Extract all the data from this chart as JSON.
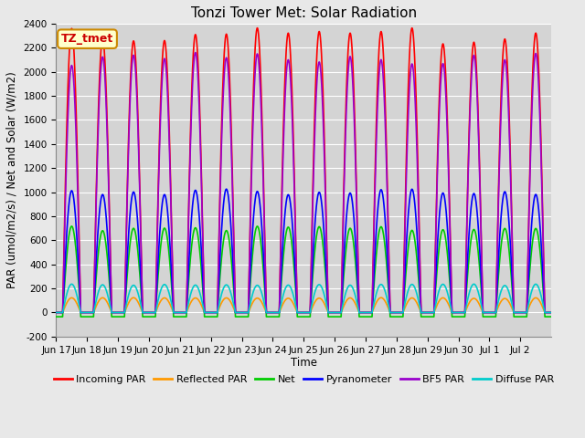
{
  "title": "Tonzi Tower Met: Solar Radiation",
  "ylabel": "PAR (umol/m2/s) / Net and Solar (W/m2)",
  "xlabel": "Time",
  "ylim": [
    -200,
    2400
  ],
  "yticks": [
    -200,
    0,
    200,
    400,
    600,
    800,
    1000,
    1200,
    1400,
    1600,
    1800,
    2000,
    2200,
    2400
  ],
  "fig_bg": "#e8e8e8",
  "plot_bg": "#d4d4d4",
  "grid_color": "#ffffff",
  "label_box_text": "TZ_tmet",
  "label_box_facecolor": "#ffffcc",
  "label_box_edgecolor": "#cc8800",
  "series": [
    {
      "name": "Incoming PAR",
      "color": "#ff0000",
      "peak": 2300,
      "lw": 1.2
    },
    {
      "name": "Reflected PAR",
      "color": "#ff9900",
      "peak": 120,
      "lw": 1.2
    },
    {
      "name": "Net",
      "color": "#00cc00",
      "peak": 700,
      "lw": 1.2
    },
    {
      "name": "Pyranometer",
      "color": "#0000ff",
      "peak": 1000,
      "lw": 1.2
    },
    {
      "name": "BF5 PAR",
      "color": "#9900cc",
      "peak": 2100,
      "lw": 1.2
    },
    {
      "name": "Diffuse PAR",
      "color": "#00cccc",
      "peak": 230,
      "lw": 1.2
    }
  ],
  "n_days": 16,
  "ppd": 480,
  "day_labels": [
    "Jun 17",
    "Jun 18",
    "Jun 19",
    "Jun 20",
    "Jun 21",
    "Jun 22",
    "Jun 23",
    "Jun 24",
    "Jun 25",
    "Jun 26",
    "Jun 27",
    "Jun 28",
    "Jun 29",
    "Jun 30",
    "Jul 1",
    "Jul 2"
  ],
  "title_fontsize": 11,
  "tick_fontsize": 7.5,
  "label_fontsize": 8.5,
  "legend_fontsize": 8
}
